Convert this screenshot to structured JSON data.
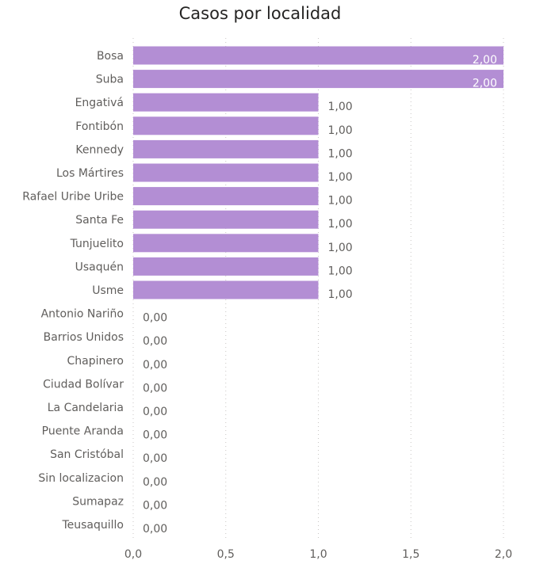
{
  "chart_data": {
    "type": "bar",
    "orientation": "horizontal",
    "title": "Casos por localidad",
    "xlabel": "",
    "ylabel": "",
    "categories": [
      "Bosa",
      "Suba",
      "Engativá",
      "Fontibón",
      "Kennedy",
      "Los Mártires",
      "Rafael Uribe Uribe",
      "Santa Fe",
      "Tunjuelito",
      "Usaquén",
      "Usme",
      "Antonio Nariño",
      "Barrios Unidos",
      "Chapinero",
      "Ciudad Bolívar",
      "La Candelaria",
      "Puente Aranda",
      "San Cristóbal",
      "Sin localizacion",
      "Sumapaz",
      "Teusaquillo"
    ],
    "values": [
      2,
      2,
      1,
      1,
      1,
      1,
      1,
      1,
      1,
      1,
      1,
      0,
      0,
      0,
      0,
      0,
      0,
      0,
      0,
      0,
      0
    ],
    "data_labels": [
      "2,00",
      "2,00",
      "1,00",
      "1,00",
      "1,00",
      "1,00",
      "1,00",
      "1,00",
      "1,00",
      "1,00",
      "1,00",
      "0,00",
      "0,00",
      "0,00",
      "0,00",
      "0,00",
      "0,00",
      "0,00",
      "0,00",
      "0,00",
      "0,00"
    ],
    "xlim": [
      0,
      2
    ],
    "xticks": [
      0,
      0.5,
      1,
      1.5,
      2
    ],
    "xtick_labels": [
      "0,0",
      "0,5",
      "1,0",
      "1,5",
      "2,0"
    ],
    "grid": true,
    "bar_color": "#b38ed4",
    "legend": "none"
  }
}
